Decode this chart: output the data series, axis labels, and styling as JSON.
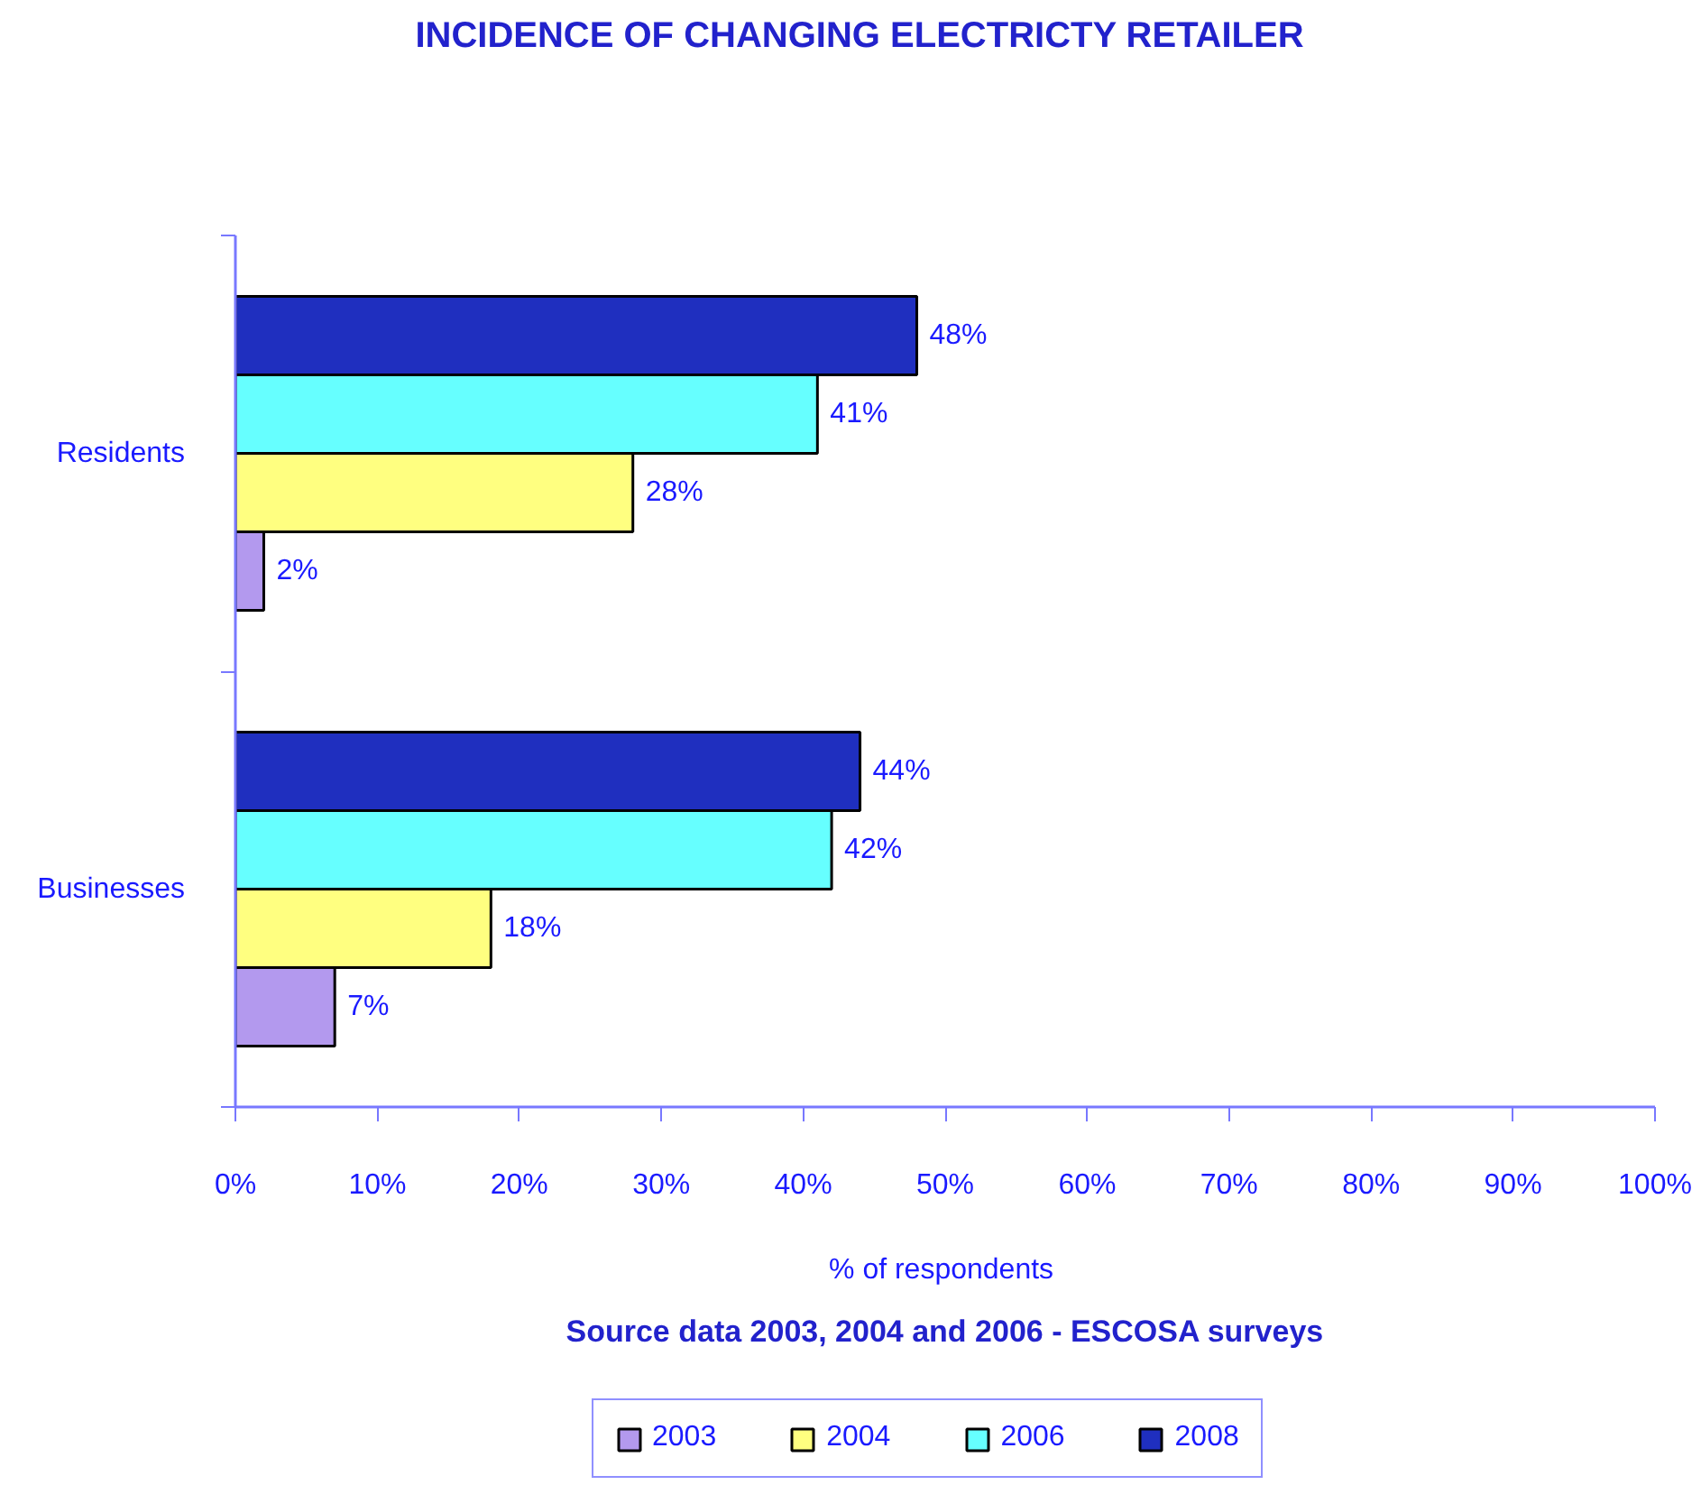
{
  "chart_data": {
    "type": "bar",
    "orientation": "horizontal",
    "title": "INCIDENCE OF CHANGING ELECTRICTY RETAILER",
    "xlabel": "%  of respondents",
    "annotations": [
      "Source data 2003, 2004 and 2006 - ESCOSA surveys"
    ],
    "categories": [
      "Residents",
      "Businesses"
    ],
    "series": [
      {
        "name": "2003",
        "color": "#b399ee",
        "values": [
          2,
          7
        ],
        "value_labels": [
          "2%",
          "7%"
        ]
      },
      {
        "name": "2004",
        "color": "#ffff80",
        "values": [
          28,
          18
        ],
        "value_labels": [
          "28%",
          "18%"
        ]
      },
      {
        "name": "2006",
        "color": "#66ffff",
        "values": [
          41,
          42
        ],
        "value_labels": [
          "41%",
          "42%"
        ]
      },
      {
        "name": "2008",
        "color": "#1f2fbf",
        "values": [
          48,
          44
        ],
        "value_labels": [
          "48%",
          "44%"
        ]
      }
    ],
    "xlim": [
      0,
      100
    ],
    "xticks": [
      {
        "value": 0,
        "label": "0%"
      },
      {
        "value": 10,
        "label": "10%"
      },
      {
        "value": 20,
        "label": "20%"
      },
      {
        "value": 30,
        "label": "30%"
      },
      {
        "value": 40,
        "label": "40%"
      },
      {
        "value": 50,
        "label": "50%"
      },
      {
        "value": 60,
        "label": "60%"
      },
      {
        "value": 70,
        "label": "70%"
      },
      {
        "value": 80,
        "label": "80%"
      },
      {
        "value": 90,
        "label": "90%"
      },
      {
        "value": 100,
        "label": "100%"
      }
    ],
    "grid": false,
    "legend": "bottom"
  }
}
